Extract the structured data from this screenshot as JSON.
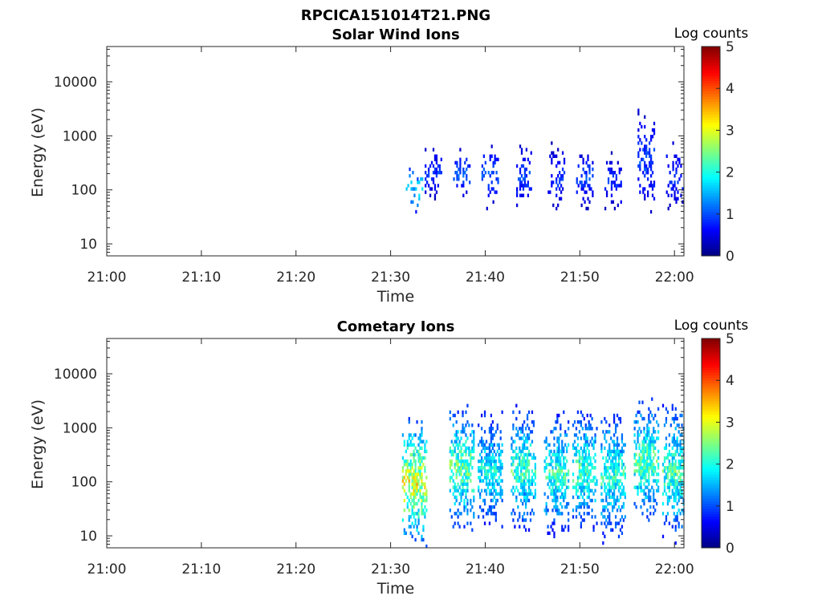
{
  "figure": {
    "title": "RPCICA151014T21.PNG"
  },
  "chart_data": [
    {
      "type": "heatmap",
      "title": "Solar Wind Ions",
      "xlabel": "Time",
      "ylabel": "Energy (eV)",
      "x_ticks": [
        "21:00",
        "21:10",
        "21:20",
        "21:30",
        "21:40",
        "21:50",
        "22:00"
      ],
      "y_ticks": [
        "10",
        "100",
        "1000",
        "10000"
      ],
      "y_scale": "log",
      "ylim": [
        6,
        45000
      ],
      "xlim": [
        "21:00",
        "22:01"
      ],
      "colorbar": {
        "label": "Log counts",
        "range": [
          0,
          5
        ],
        "ticks": [
          "0",
          "1",
          "2",
          "3",
          "4",
          "5"
        ],
        "colormap": "jet"
      },
      "bursts": [
        {
          "time": "21:32:30",
          "e_low": 35,
          "e_high": 250,
          "log_counts": 1.8
        },
        {
          "time": "21:34:30",
          "e_low": 60,
          "e_high": 600,
          "log_counts": 0.9
        },
        {
          "time": "21:37:30",
          "e_low": 70,
          "e_high": 500,
          "log_counts": 1.1
        },
        {
          "time": "21:40:30",
          "e_low": 50,
          "e_high": 600,
          "log_counts": 1.1
        },
        {
          "time": "21:44:00",
          "e_low": 45,
          "e_high": 600,
          "log_counts": 1.0
        },
        {
          "time": "21:47:30",
          "e_low": 40,
          "e_high": 600,
          "log_counts": 0.9
        },
        {
          "time": "21:50:30",
          "e_low": 50,
          "e_high": 500,
          "log_counts": 1.0
        },
        {
          "time": "21:53:30",
          "e_low": 40,
          "e_high": 450,
          "log_counts": 0.9
        },
        {
          "time": "21:57:00",
          "e_low": 40,
          "e_high": 2500,
          "log_counts": 1.0
        },
        {
          "time": "22:00:00",
          "e_low": 40,
          "e_high": 700,
          "log_counts": 0.9
        }
      ]
    },
    {
      "type": "heatmap",
      "title": "Cometary Ions",
      "xlabel": "Time",
      "ylabel": "Energy (eV)",
      "x_ticks": [
        "21:00",
        "21:10",
        "21:20",
        "21:30",
        "21:40",
        "21:50",
        "22:00"
      ],
      "y_ticks": [
        "10",
        "100",
        "1000",
        "10000"
      ],
      "y_scale": "log",
      "ylim": [
        6,
        45000
      ],
      "xlim": [
        "21:00",
        "22:01"
      ],
      "colorbar": {
        "label": "Log counts",
        "range": [
          0,
          5
        ],
        "ticks": [
          "0",
          "1",
          "2",
          "3",
          "4",
          "5"
        ],
        "colormap": "jet"
      },
      "bursts": [
        {
          "time": "21:32:30",
          "e_low": 8,
          "e_high": 1000,
          "log_counts": 3.1
        },
        {
          "time": "21:37:30",
          "e_low": 15,
          "e_high": 2000,
          "log_counts": 2.5
        },
        {
          "time": "21:40:30",
          "e_low": 15,
          "e_high": 1500,
          "log_counts": 2.0
        },
        {
          "time": "21:44:00",
          "e_low": 15,
          "e_high": 1800,
          "log_counts": 2.3
        },
        {
          "time": "21:47:30",
          "e_low": 12,
          "e_high": 1500,
          "log_counts": 2.2
        },
        {
          "time": "21:50:30",
          "e_low": 15,
          "e_high": 1500,
          "log_counts": 2.3
        },
        {
          "time": "21:53:30",
          "e_low": 10,
          "e_high": 1500,
          "log_counts": 2.2
        },
        {
          "time": "21:57:00",
          "e_low": 20,
          "e_high": 2500,
          "log_counts": 2.4
        },
        {
          "time": "22:00:00",
          "e_low": 10,
          "e_high": 2000,
          "log_counts": 2.3
        }
      ]
    }
  ]
}
